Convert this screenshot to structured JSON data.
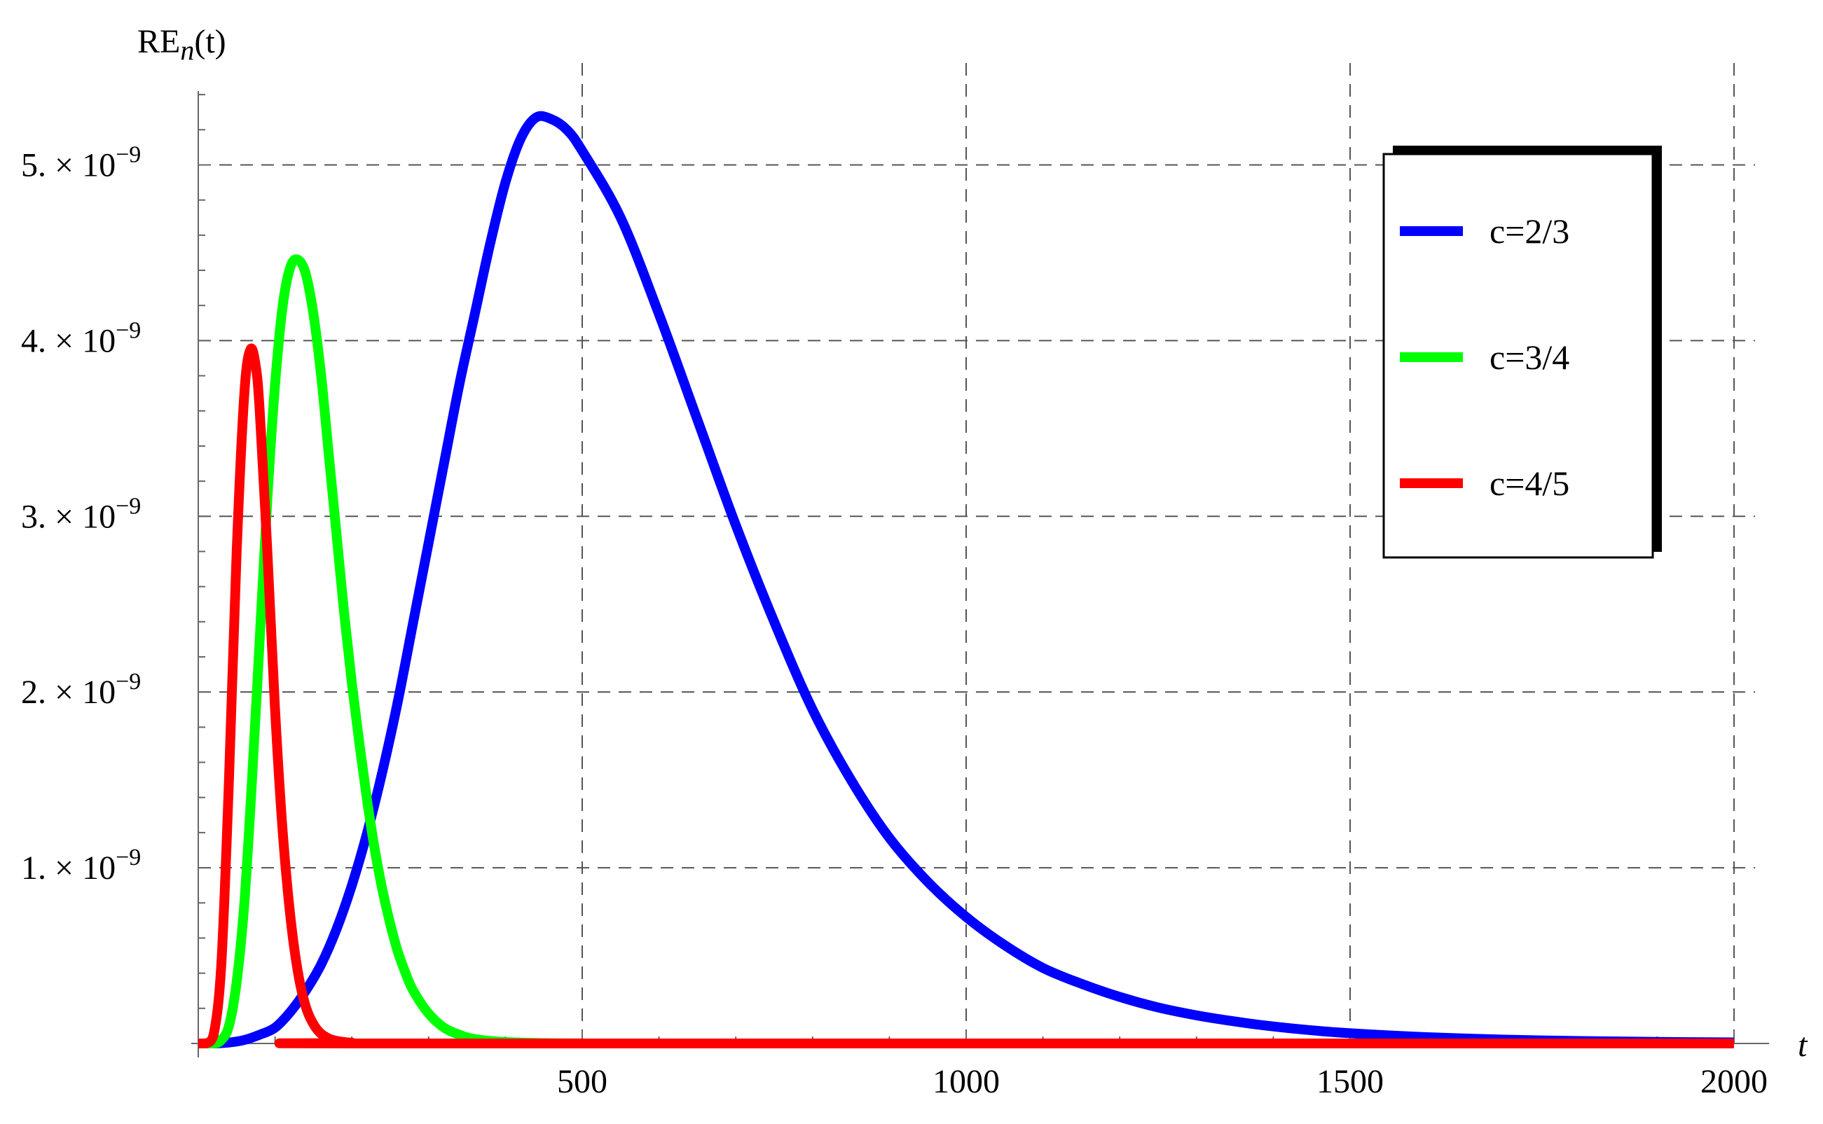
{
  "chart_data": {
    "type": "line",
    "ylabel": {
      "base": "RE",
      "sub": "n",
      "suffix": "(t)"
    },
    "xlabel": "t",
    "xlim": [
      0,
      2000
    ],
    "ylim": [
      0,
      5.5e-09
    ],
    "x_ticks": [
      {
        "value": 500,
        "label": "500"
      },
      {
        "value": 1000,
        "label": "1000"
      },
      {
        "value": 1500,
        "label": "1500"
      },
      {
        "value": 2000,
        "label": "2000"
      }
    ],
    "y_ticks": [
      {
        "value": 1e-09,
        "mantissa": "1.",
        "times": "×",
        "base": "10",
        "exponent": "−9"
      },
      {
        "value": 2e-09,
        "mantissa": "2.",
        "times": "×",
        "base": "10",
        "exponent": "−9"
      },
      {
        "value": 3e-09,
        "mantissa": "3.",
        "times": "×",
        "base": "10",
        "exponent": "−9"
      },
      {
        "value": 4e-09,
        "mantissa": "4.",
        "times": "×",
        "base": "10",
        "exponent": "−9"
      },
      {
        "value": 5e-09,
        "mantissa": "5.",
        "times": "×",
        "base": "10",
        "exponent": "−9"
      }
    ],
    "grid": true,
    "grid_style": "dashed",
    "legend_position": "top-right",
    "series": [
      {
        "name": "c=2/3",
        "color": "#0000ff",
        "points": [
          [
            0,
            0
          ],
          [
            20,
            0.0
          ],
          [
            40,
            5e-12
          ],
          [
            60,
            2e-11
          ],
          [
            80,
            5e-11
          ],
          [
            100,
            9e-11
          ],
          [
            120,
            1.8e-10
          ],
          [
            140,
            3e-10
          ],
          [
            160,
            4.5e-10
          ],
          [
            180,
            6.5e-10
          ],
          [
            200,
            9e-10
          ],
          [
            220,
            1.2e-09
          ],
          [
            240,
            1.55e-09
          ],
          [
            260,
            1.95e-09
          ],
          [
            280,
            2.4e-09
          ],
          [
            300,
            2.85e-09
          ],
          [
            320,
            3.3e-09
          ],
          [
            340,
            3.75e-09
          ],
          [
            360,
            4.15e-09
          ],
          [
            380,
            4.55e-09
          ],
          [
            400,
            4.9e-09
          ],
          [
            420,
            5.15e-09
          ],
          [
            440,
            5.27e-09
          ],
          [
            460,
            5.26e-09
          ],
          [
            480,
            5.2e-09
          ],
          [
            500,
            5.08e-09
          ],
          [
            550,
            4.7e-09
          ],
          [
            600,
            4.15e-09
          ],
          [
            650,
            3.55e-09
          ],
          [
            700,
            2.95e-09
          ],
          [
            750,
            2.4e-09
          ],
          [
            800,
            1.9e-09
          ],
          [
            850,
            1.5e-09
          ],
          [
            900,
            1.17e-09
          ],
          [
            950,
            9.2e-10
          ],
          [
            1000,
            7.2e-10
          ],
          [
            1050,
            5.6e-10
          ],
          [
            1100,
            4.3e-10
          ],
          [
            1150,
            3.4e-10
          ],
          [
            1200,
            2.65e-10
          ],
          [
            1250,
            2.05e-10
          ],
          [
            1300,
            1.6e-10
          ],
          [
            1350,
            1.25e-10
          ],
          [
            1400,
            9.7e-11
          ],
          [
            1450,
            7.5e-11
          ],
          [
            1500,
            5.8e-11
          ],
          [
            1600,
            3.6e-11
          ],
          [
            1700,
            2.2e-11
          ],
          [
            1800,
            1.4e-11
          ],
          [
            1900,
            9e-12
          ],
          [
            2000,
            6e-12
          ]
        ]
      },
      {
        "name": "c=3/4",
        "color": "#00ff00",
        "points": [
          [
            0,
            0
          ],
          [
            20,
            0.0
          ],
          [
            30,
            2e-11
          ],
          [
            40,
            1e-10
          ],
          [
            50,
            3.5e-10
          ],
          [
            60,
            8e-10
          ],
          [
            70,
            1.5e-09
          ],
          [
            80,
            2.3e-09
          ],
          [
            90,
            3.1e-09
          ],
          [
            100,
            3.75e-09
          ],
          [
            110,
            4.2e-09
          ],
          [
            120,
            4.42e-09
          ],
          [
            130,
            4.46e-09
          ],
          [
            140,
            4.38e-09
          ],
          [
            150,
            4.15e-09
          ],
          [
            160,
            3.8e-09
          ],
          [
            170,
            3.35e-09
          ],
          [
            180,
            2.9e-09
          ],
          [
            190,
            2.45e-09
          ],
          [
            200,
            2.05e-09
          ],
          [
            210,
            1.7e-09
          ],
          [
            220,
            1.38e-09
          ],
          [
            230,
            1.1e-09
          ],
          [
            240,
            8.7e-10
          ],
          [
            250,
            6.8e-10
          ],
          [
            260,
            5.2e-10
          ],
          [
            270,
            4e-10
          ],
          [
            280,
            3e-10
          ],
          [
            300,
            1.7e-10
          ],
          [
            320,
            9e-11
          ],
          [
            340,
            5e-11
          ],
          [
            360,
            2.5e-11
          ],
          [
            400,
            8e-12
          ],
          [
            450,
            2e-12
          ],
          [
            500,
            5e-13
          ],
          [
            600,
            0
          ],
          [
            2000,
            0
          ]
        ]
      },
      {
        "name": "c=4/5",
        "color": "#ff0000",
        "points": [
          [
            0,
            0
          ],
          [
            10,
            0.0
          ],
          [
            20,
            5e-11
          ],
          [
            30,
            4.5e-10
          ],
          [
            40,
            1.5e-09
          ],
          [
            50,
            2.8e-09
          ],
          [
            60,
            3.7e-09
          ],
          [
            68,
            3.95e-09
          ],
          [
            75,
            3.85e-09
          ],
          [
            80,
            3.6e-09
          ],
          [
            90,
            2.8e-09
          ],
          [
            100,
            1.9e-09
          ],
          [
            110,
            1.2e-09
          ],
          [
            120,
            7.2e-10
          ],
          [
            130,
            4e-10
          ],
          [
            140,
            2.1e-10
          ],
          [
            150,
            1.1e-10
          ],
          [
            160,
            5.5e-11
          ],
          [
            175,
            2e-11
          ],
          [
            200,
            4e-12
          ],
          [
            250,
            0
          ],
          [
            2000,
            0
          ]
        ]
      }
    ]
  }
}
